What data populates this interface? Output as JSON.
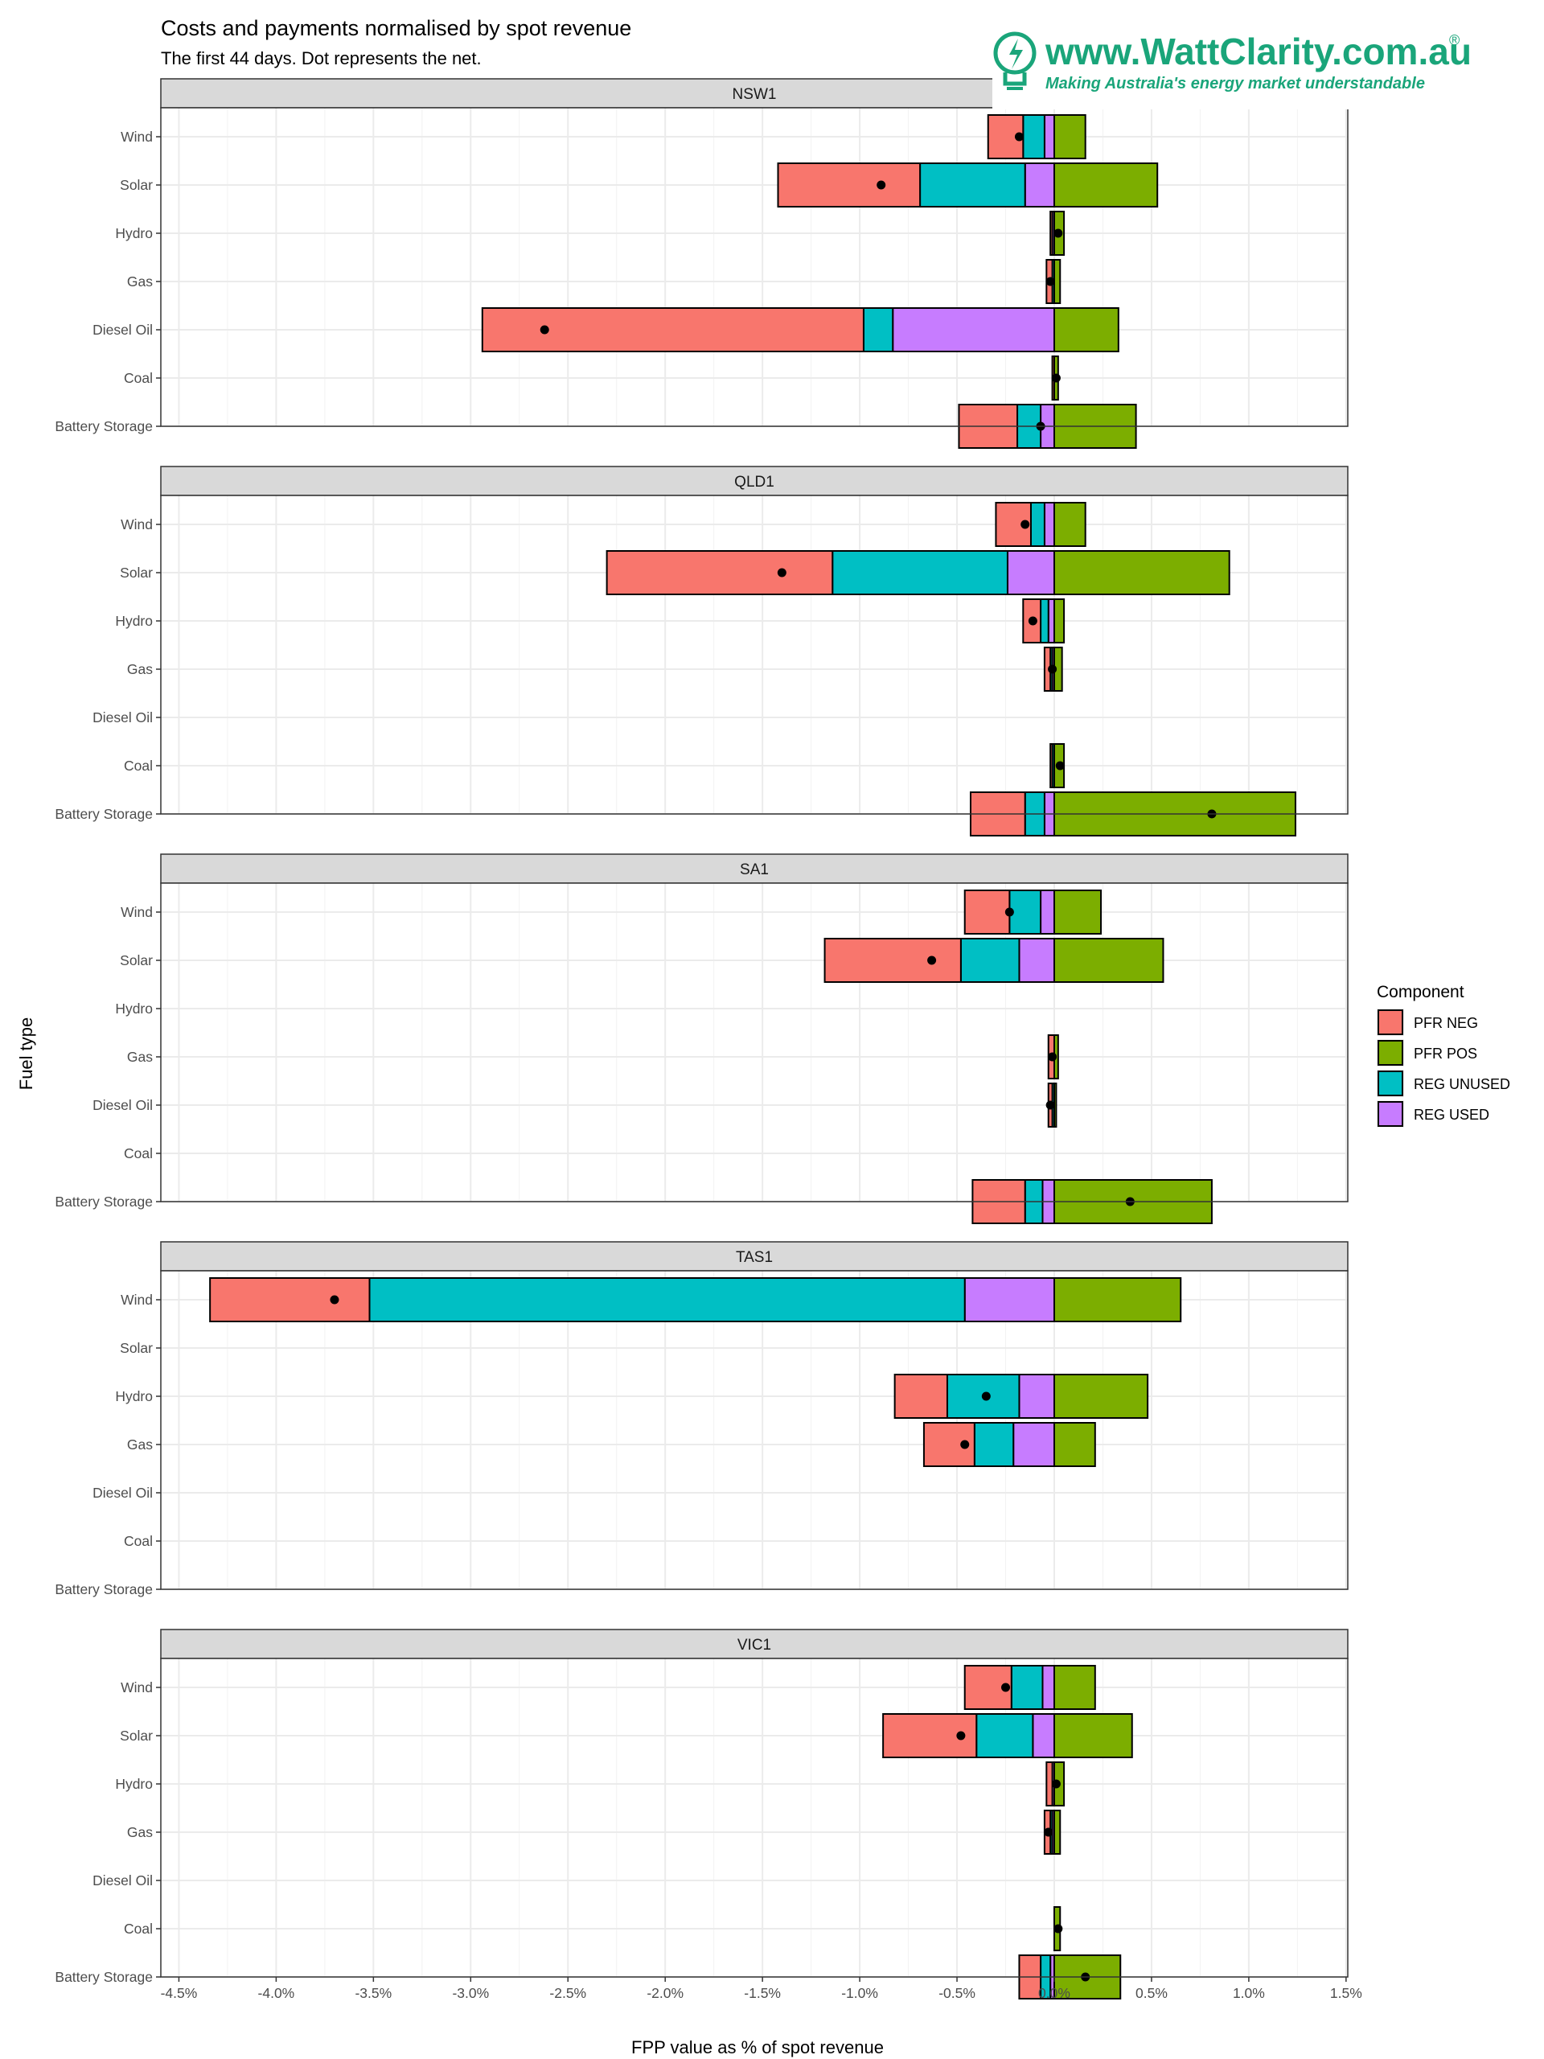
{
  "chart_data": {
    "type": "bar",
    "orientation": "horizontal",
    "stacked": true,
    "title": "Costs and payments normalised by spot revenue",
    "subtitle": "The first 44 days. Dot represents the net.",
    "xlabel": "FPP value as % of spot revenue",
    "ylabel": "Fuel type",
    "xlim": [
      -4.6,
      1.5
    ],
    "x_ticks": [
      -4.5,
      -4.0,
      -3.5,
      -3.0,
      -2.5,
      -2.0,
      -1.5,
      -1.0,
      -0.5,
      0.0,
      0.5,
      1.0,
      1.5
    ],
    "x_tick_labels": [
      "-4.5%",
      "-4.0%",
      "-3.5%",
      "-3.0%",
      "-2.5%",
      "-2.0%",
      "-1.5%",
      "-1.0%",
      "-0.5%",
      "0.0%",
      "0.5%",
      "1.0%",
      "1.5%"
    ],
    "grid": true,
    "categories": [
      "Wind",
      "Solar",
      "Hydro",
      "Gas",
      "Diesel Oil",
      "Coal",
      "Battery Storage"
    ],
    "legend": {
      "title": "Component",
      "placement": "right",
      "items": [
        {
          "name": "PFR NEG",
          "color": "#f8766d"
        },
        {
          "name": "PFR POS",
          "color": "#7cae00"
        },
        {
          "name": "REG UNUSED",
          "color": "#00bfc4"
        },
        {
          "name": "REG USED",
          "color": "#c77cff"
        }
      ]
    },
    "series_colors": {
      "pfr_neg": "#f8766d",
      "pfr_pos": "#7cae00",
      "reg_unused": "#00bfc4",
      "reg_used": "#c77cff"
    },
    "panels": [
      {
        "region": "NSW1",
        "bars": [
          {
            "fuel": "Wind",
            "reg_used": -0.05,
            "reg_unused": -0.11,
            "pfr_neg": -0.18,
            "pfr_pos": 0.16,
            "net": -0.18
          },
          {
            "fuel": "Solar",
            "reg_used": -0.15,
            "reg_unused": -0.54,
            "pfr_neg": -0.73,
            "pfr_pos": 0.53,
            "net": -0.89
          },
          {
            "fuel": "Hydro",
            "reg_used": -0.01,
            "reg_unused": 0,
            "pfr_neg": -0.01,
            "pfr_pos": 0.05,
            "net": 0.02
          },
          {
            "fuel": "Gas",
            "reg_used": 0,
            "reg_unused": -0.01,
            "pfr_neg": -0.03,
            "pfr_pos": 0.03,
            "net": -0.02
          },
          {
            "fuel": "Diesel Oil",
            "reg_used": -0.83,
            "reg_unused": -0.15,
            "pfr_neg": -1.96,
            "pfr_pos": 0.33,
            "net": -2.62
          },
          {
            "fuel": "Coal",
            "reg_used": 0,
            "reg_unused": 0,
            "pfr_neg": -0.01,
            "pfr_pos": 0.02,
            "net": 0.01
          },
          {
            "fuel": "Battery Storage",
            "reg_used": -0.07,
            "reg_unused": -0.12,
            "pfr_neg": -0.3,
            "pfr_pos": 0.42,
            "net": -0.07
          }
        ]
      },
      {
        "region": "QLD1",
        "bars": [
          {
            "fuel": "Wind",
            "reg_used": -0.05,
            "reg_unused": -0.07,
            "pfr_neg": -0.18,
            "pfr_pos": 0.16,
            "net": -0.15
          },
          {
            "fuel": "Solar",
            "reg_used": -0.24,
            "reg_unused": -0.9,
            "pfr_neg": -1.16,
            "pfr_pos": 0.9,
            "net": -1.4
          },
          {
            "fuel": "Hydro",
            "reg_used": -0.03,
            "reg_unused": -0.04,
            "pfr_neg": -0.09,
            "pfr_pos": 0.05,
            "net": -0.11
          },
          {
            "fuel": "Gas",
            "reg_used": -0.01,
            "reg_unused": -0.01,
            "pfr_neg": -0.03,
            "pfr_pos": 0.04,
            "net": -0.01
          },
          {
            "fuel": "Diesel Oil",
            "reg_used": null,
            "reg_unused": null,
            "pfr_neg": null,
            "pfr_pos": null,
            "net": null
          },
          {
            "fuel": "Coal",
            "reg_used": 0,
            "reg_unused": -0.01,
            "pfr_neg": -0.01,
            "pfr_pos": 0.05,
            "net": 0.03
          },
          {
            "fuel": "Battery Storage",
            "reg_used": -0.05,
            "reg_unused": -0.1,
            "pfr_neg": -0.28,
            "pfr_pos": 1.24,
            "net": 0.81
          }
        ]
      },
      {
        "region": "SA1",
        "bars": [
          {
            "fuel": "Wind",
            "reg_used": -0.07,
            "reg_unused": -0.16,
            "pfr_neg": -0.23,
            "pfr_pos": 0.24,
            "net": -0.23
          },
          {
            "fuel": "Solar",
            "reg_used": -0.18,
            "reg_unused": -0.3,
            "pfr_neg": -0.7,
            "pfr_pos": 0.56,
            "net": -0.63
          },
          {
            "fuel": "Hydro",
            "reg_used": null,
            "reg_unused": null,
            "pfr_neg": null,
            "pfr_pos": null,
            "net": null
          },
          {
            "fuel": "Gas",
            "reg_used": 0,
            "reg_unused": 0,
            "pfr_neg": -0.03,
            "pfr_pos": 0.02,
            "net": -0.01
          },
          {
            "fuel": "Diesel Oil",
            "reg_used": 0,
            "reg_unused": -0.01,
            "pfr_neg": -0.02,
            "pfr_pos": 0.01,
            "net": -0.02
          },
          {
            "fuel": "Coal",
            "reg_used": null,
            "reg_unused": null,
            "pfr_neg": null,
            "pfr_pos": null,
            "net": null
          },
          {
            "fuel": "Battery Storage",
            "reg_used": -0.06,
            "reg_unused": -0.09,
            "pfr_neg": -0.27,
            "pfr_pos": 0.81,
            "net": 0.39
          }
        ]
      },
      {
        "region": "TAS1",
        "bars": [
          {
            "fuel": "Wind",
            "reg_used": -0.46,
            "reg_unused": -3.06,
            "pfr_neg": -0.82,
            "pfr_pos": 0.65,
            "net": -3.7
          },
          {
            "fuel": "Solar",
            "reg_used": null,
            "reg_unused": null,
            "pfr_neg": null,
            "pfr_pos": null,
            "net": null
          },
          {
            "fuel": "Hydro",
            "reg_used": -0.18,
            "reg_unused": -0.37,
            "pfr_neg": -0.27,
            "pfr_pos": 0.48,
            "net": -0.35
          },
          {
            "fuel": "Gas",
            "reg_used": -0.21,
            "reg_unused": -0.2,
            "pfr_neg": -0.26,
            "pfr_pos": 0.21,
            "net": -0.46
          },
          {
            "fuel": "Diesel Oil",
            "reg_used": null,
            "reg_unused": null,
            "pfr_neg": null,
            "pfr_pos": null,
            "net": null
          },
          {
            "fuel": "Coal",
            "reg_used": null,
            "reg_unused": null,
            "pfr_neg": null,
            "pfr_pos": null,
            "net": null
          },
          {
            "fuel": "Battery Storage",
            "reg_used": null,
            "reg_unused": null,
            "pfr_neg": null,
            "pfr_pos": null,
            "net": null
          }
        ]
      },
      {
        "region": "VIC1",
        "bars": [
          {
            "fuel": "Wind",
            "reg_used": -0.06,
            "reg_unused": -0.16,
            "pfr_neg": -0.24,
            "pfr_pos": 0.21,
            "net": -0.25
          },
          {
            "fuel": "Solar",
            "reg_used": -0.11,
            "reg_unused": -0.29,
            "pfr_neg": -0.48,
            "pfr_pos": 0.4,
            "net": -0.48
          },
          {
            "fuel": "Hydro",
            "reg_used": -0.01,
            "reg_unused": 0,
            "pfr_neg": -0.03,
            "pfr_pos": 0.05,
            "net": 0.01
          },
          {
            "fuel": "Gas",
            "reg_used": -0.01,
            "reg_unused": -0.01,
            "pfr_neg": -0.03,
            "pfr_pos": 0.03,
            "net": -0.03
          },
          {
            "fuel": "Diesel Oil",
            "reg_used": null,
            "reg_unused": null,
            "pfr_neg": null,
            "pfr_pos": null,
            "net": null
          },
          {
            "fuel": "Coal",
            "reg_used": 0,
            "reg_unused": 0,
            "pfr_neg": 0,
            "pfr_pos": 0.03,
            "net": 0.02
          },
          {
            "fuel": "Battery Storage",
            "reg_used": -0.02,
            "reg_unused": -0.05,
            "pfr_neg": -0.11,
            "pfr_pos": 0.34,
            "net": 0.16
          }
        ]
      }
    ]
  },
  "branding": {
    "url": "www.WattClarity.com.au",
    "registered": "®",
    "tagline": "Making Australia's energy market understandable",
    "color": "#1aa57a"
  }
}
